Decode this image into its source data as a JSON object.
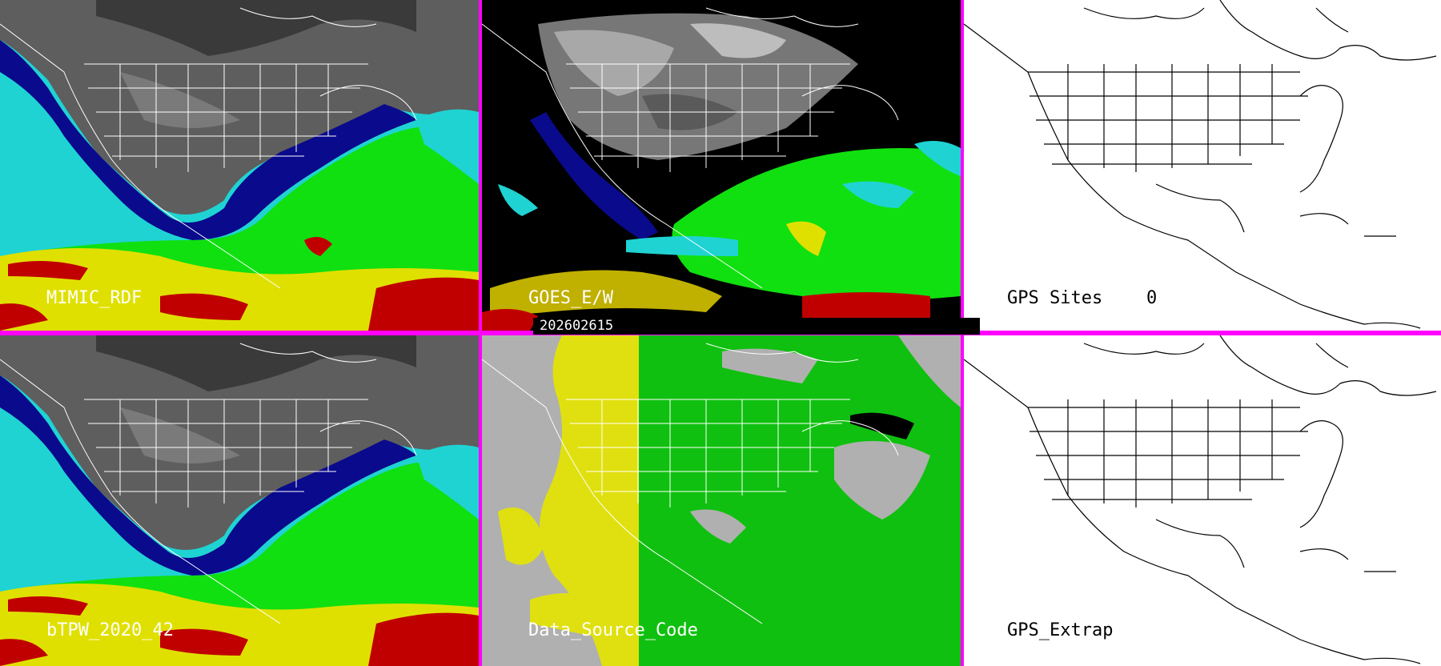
{
  "panels": {
    "top_left": {
      "label": "MIMIC_RDF"
    },
    "top_middle": {
      "label": "GOES_E/W"
    },
    "top_right": {
      "label": "GPS Sites",
      "value": "0"
    },
    "bottom_left": {
      "label": "bTPW_2020_42"
    },
    "bottom_middle": {
      "label": "Data_Source_Code"
    },
    "bottom_right": {
      "label": "GPS_Extrap"
    }
  },
  "timestamp": "202602615",
  "colors": {
    "divider": "#ff00ff",
    "tpw_gray": "#5a5a5a",
    "tpw_navy": "#0a0a8c",
    "tpw_cyan": "#1fd3d3",
    "tpw_green": "#10e010",
    "tpw_yellow": "#e0e000",
    "tpw_red": "#c00000",
    "dsc_gray": "#b0b0b0",
    "dsc_green": "#10c010",
    "dsc_yellow": "#e0e010"
  }
}
